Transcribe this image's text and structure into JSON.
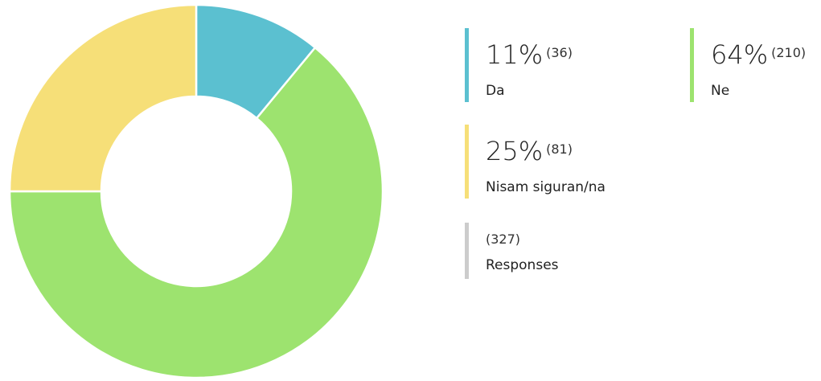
{
  "chart_data": {
    "type": "donut",
    "categories": [
      "Da",
      "Ne",
      "Nisam siguran/na"
    ],
    "values": [
      11,
      64,
      25
    ],
    "value_labels": [
      "11%",
      "64%",
      "25%"
    ],
    "counts": [
      36,
      210,
      81
    ],
    "count_labels": [
      "(36)",
      "(210)",
      "(81)"
    ],
    "colors": [
      "#5bc0d0",
      "#9de36f",
      "#f6df78"
    ],
    "total": 327,
    "total_label": "(327)",
    "total_name": "Responses",
    "total_color": "#cccccc"
  }
}
